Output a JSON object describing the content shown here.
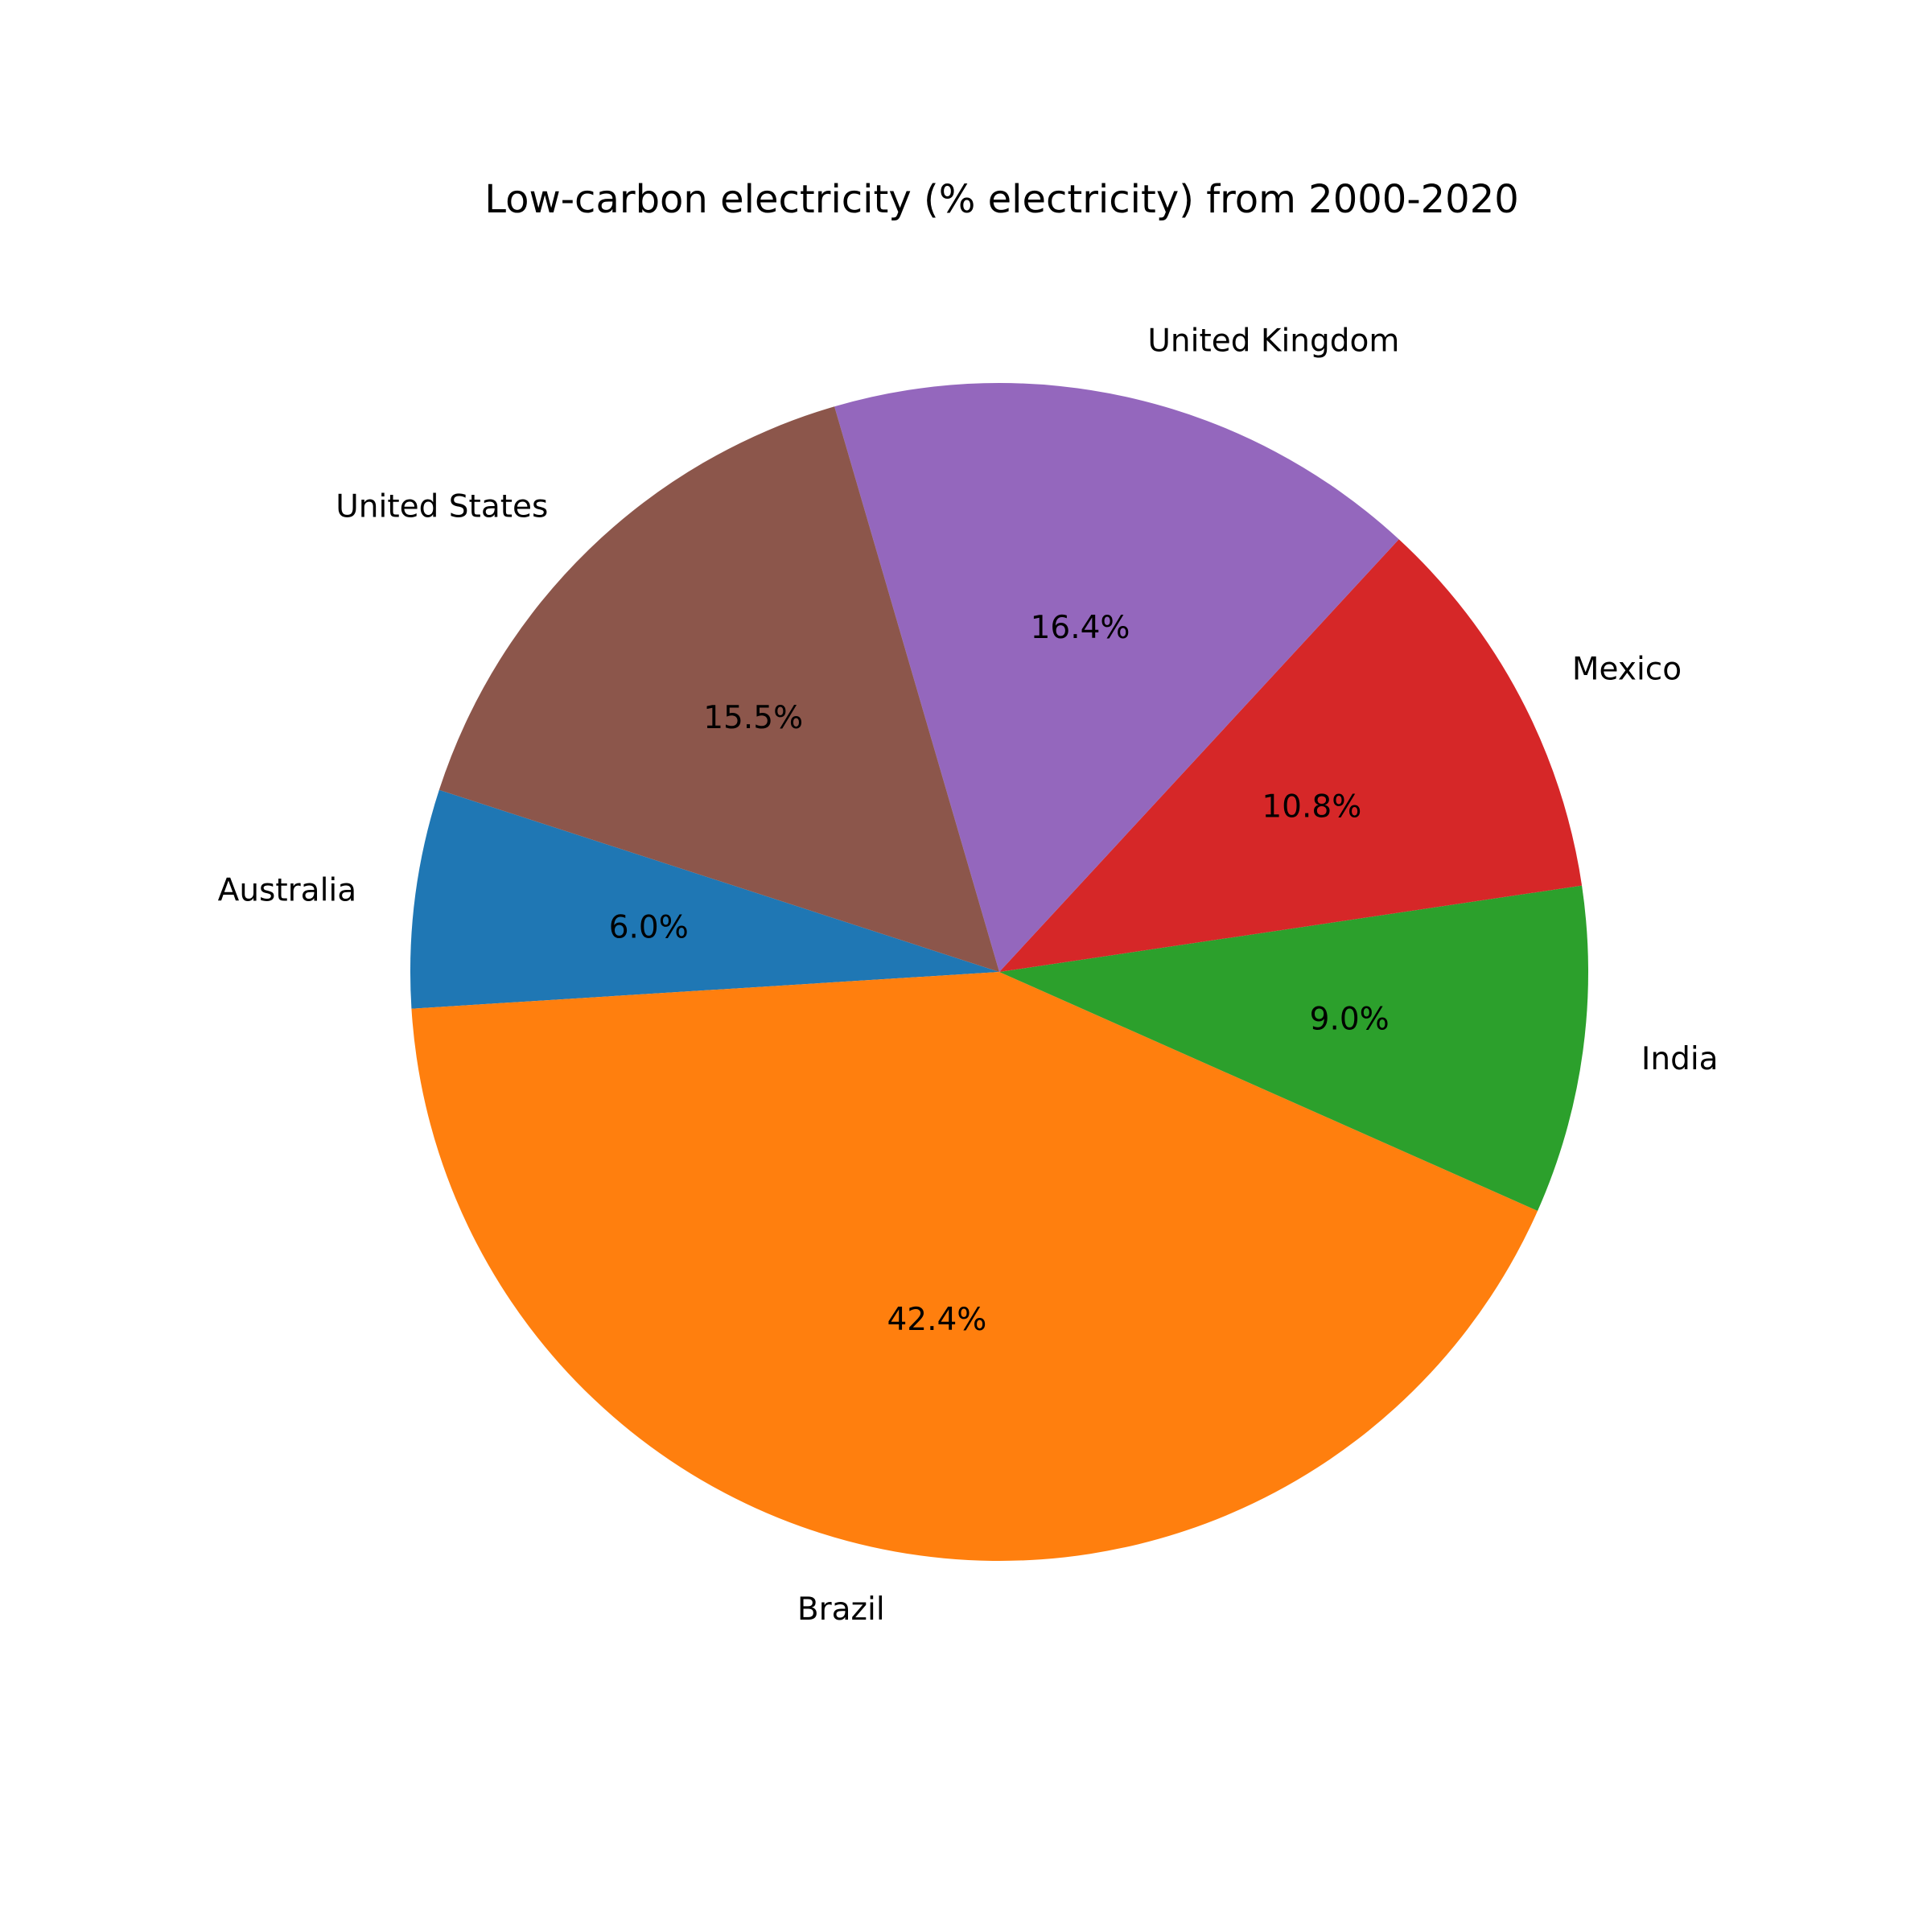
{
  "chart_data": {
    "type": "pie",
    "title": "Low-carbon electricity (% electricity) from 2000-2020",
    "start_angle_deg": 162,
    "direction": "counterclockwise",
    "slices": [
      {
        "label": "Australia",
        "value": 6.0,
        "pct_label": "6.0%",
        "color": "#1f77b4"
      },
      {
        "label": "Brazil",
        "value": 42.4,
        "pct_label": "42.4%",
        "color": "#ff7f0e"
      },
      {
        "label": "India",
        "value": 9.0,
        "pct_label": "9.0%",
        "color": "#2ca02c"
      },
      {
        "label": "Mexico",
        "value": 10.8,
        "pct_label": "10.8%",
        "color": "#d62728"
      },
      {
        "label": "United Kingdom",
        "value": 16.4,
        "pct_label": "16.4%",
        "color": "#9467bd"
      },
      {
        "label": "United States",
        "value": 15.5,
        "pct_label": "15.5%",
        "color": "#8c564b"
      }
    ]
  }
}
